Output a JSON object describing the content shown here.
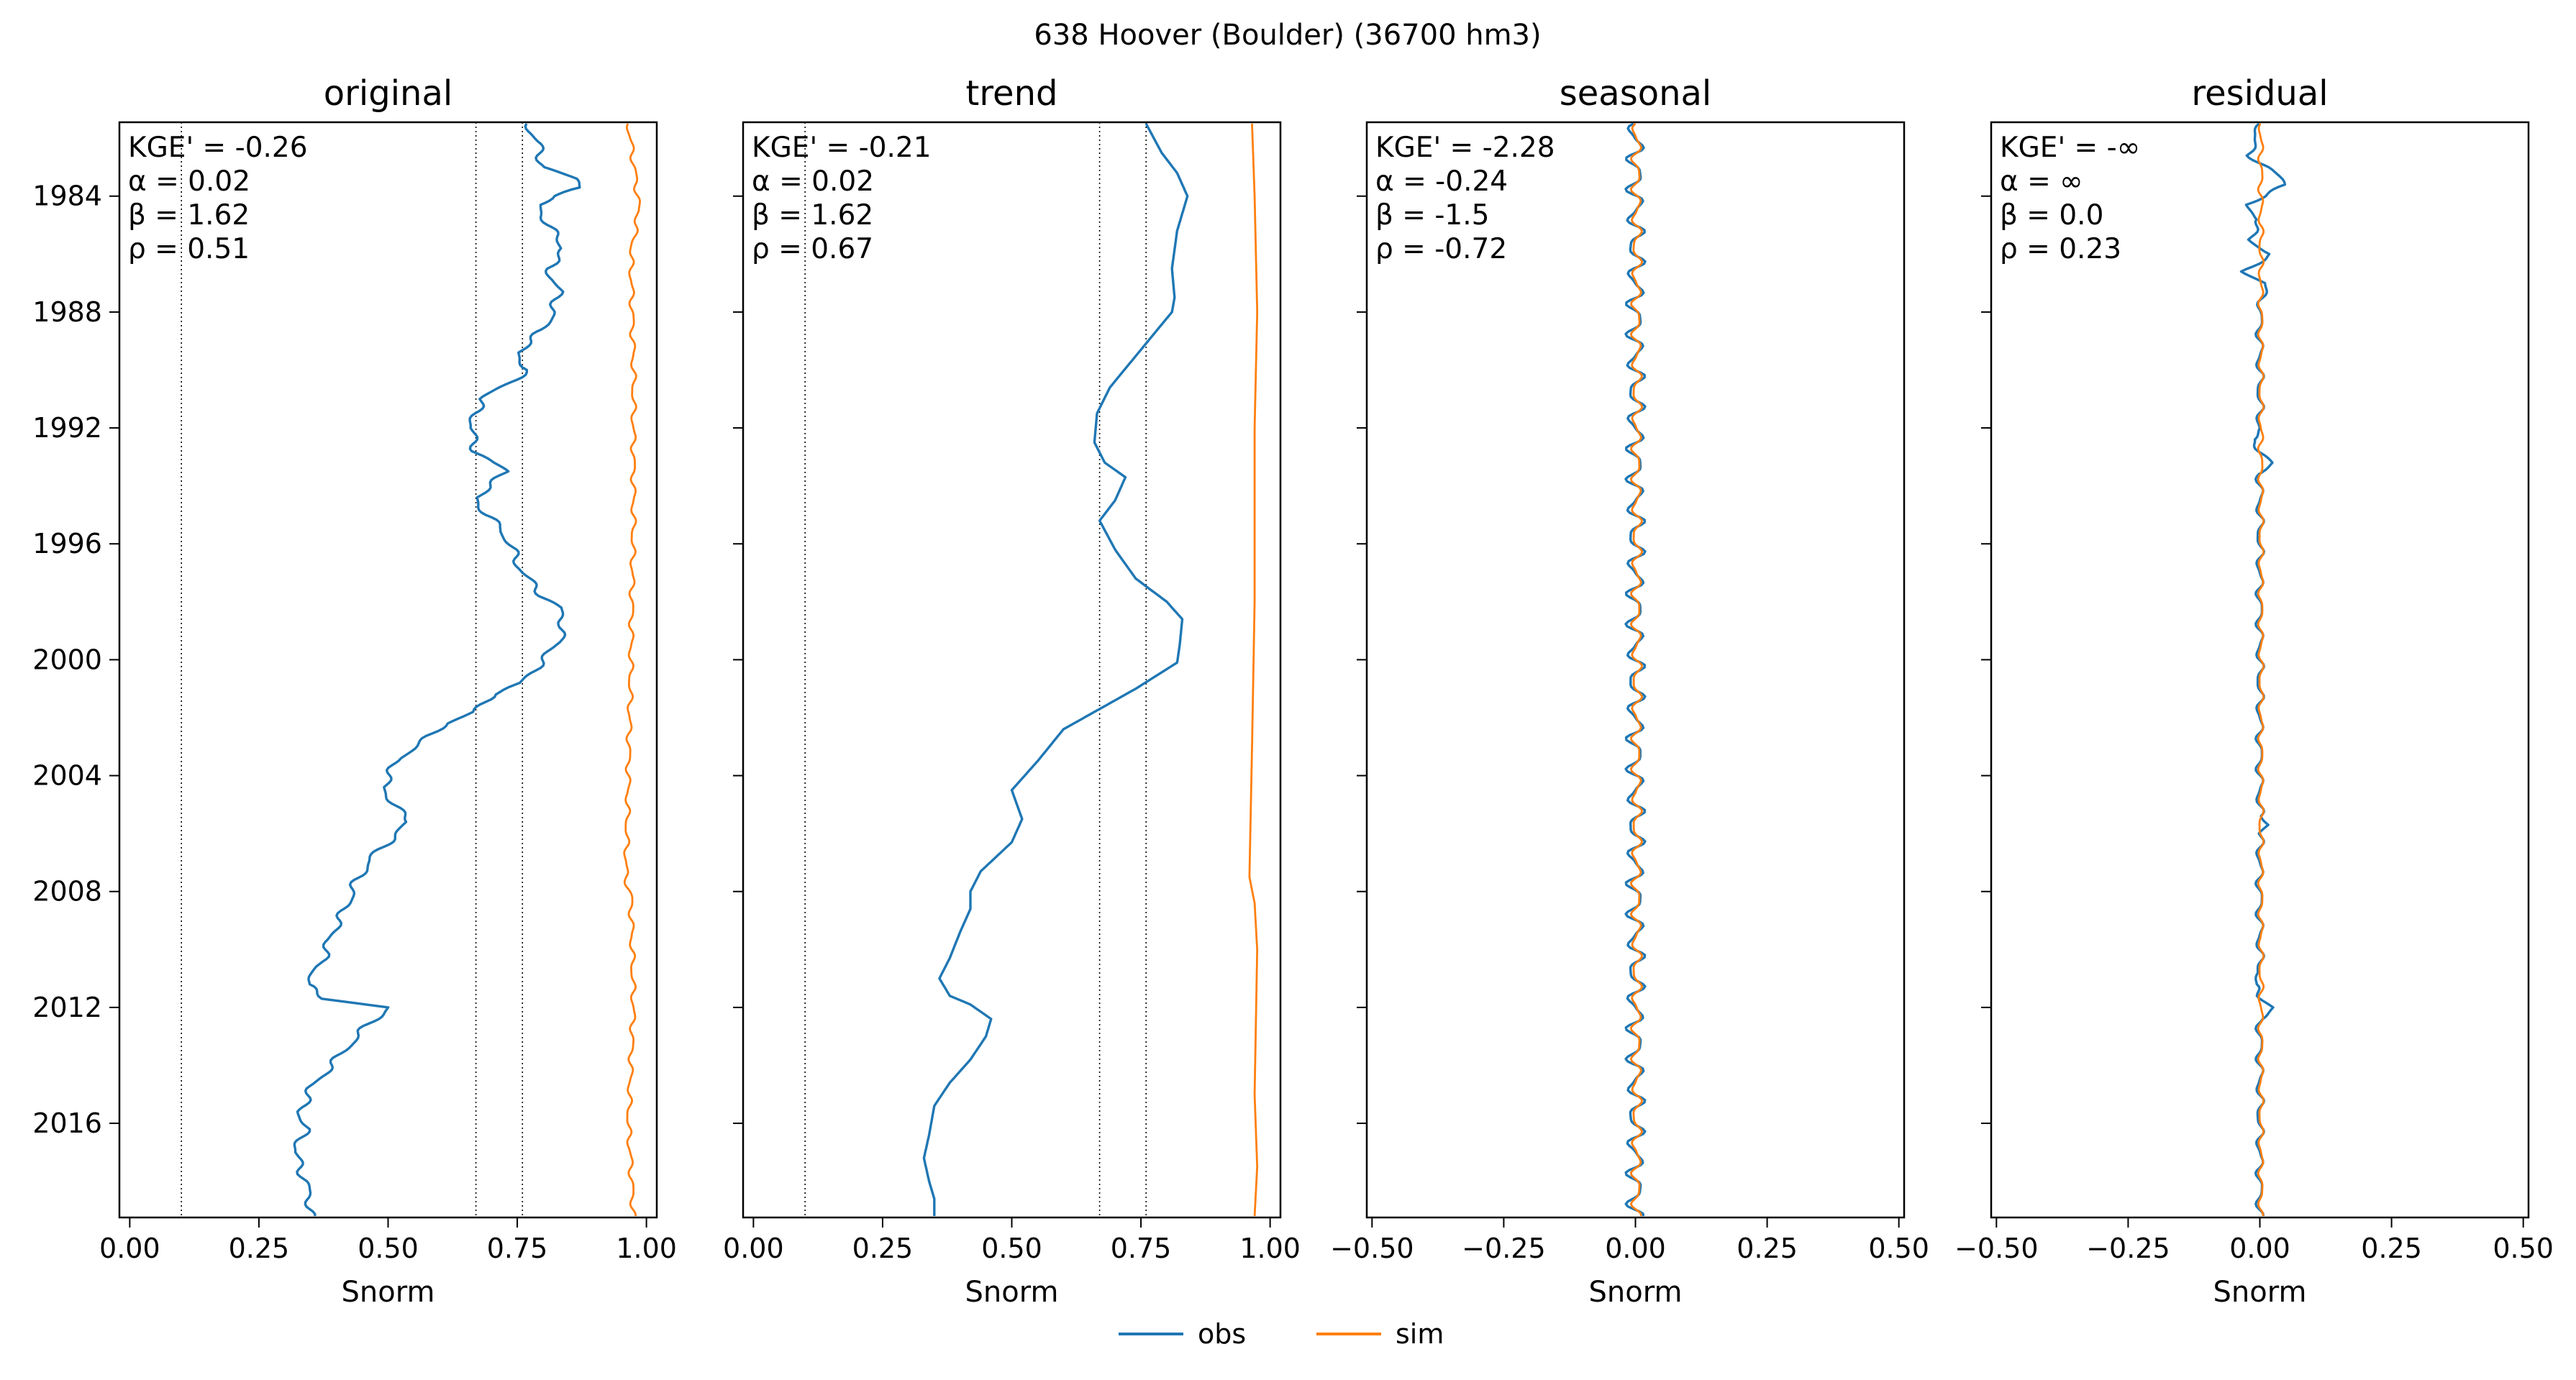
{
  "figure": {
    "title": "638  Hoover (Boulder) (36700 hm3)",
    "legend": [
      {
        "name": "obs",
        "color": "#1f77b4"
      },
      {
        "name": "sim",
        "color": "#ff7f0e"
      }
    ]
  },
  "chart_data": [
    {
      "type": "line",
      "title": "original",
      "xlabel": "Snorm",
      "xlim": [
        -0.02,
        1.02
      ],
      "ylim": [
        1981.45,
        2019.25
      ],
      "xticks": [
        "0.00",
        "0.25",
        "0.50",
        "0.75",
        "1.00"
      ],
      "xtick_values": [
        0,
        0.25,
        0.5,
        0.75,
        1.0
      ],
      "yticks": [
        "1984",
        "1988",
        "1992",
        "1996",
        "2000",
        "2004",
        "2008",
        "2012",
        "2016"
      ],
      "ytick_values": [
        1984,
        1988,
        1992,
        1996,
        2000,
        2004,
        2008,
        2012,
        2016
      ],
      "vlines": [
        0.1,
        0.67,
        0.76
      ],
      "stats": [
        "KGE' = -0.26",
        "α = 0.02",
        "β = 1.62",
        "ρ = 0.51"
      ],
      "series": [
        {
          "name": "obs",
          "color": "#1f77b4",
          "wiggle": 0.008,
          "points": [
            [
              0.77,
              1981.5
            ],
            [
              0.79,
              1982.2
            ],
            [
              0.8,
              1983.0
            ],
            [
              0.86,
              1983.4
            ],
            [
              0.88,
              1983.7
            ],
            [
              0.82,
              1984.0
            ],
            [
              0.79,
              1984.3
            ],
            [
              0.81,
              1985.0
            ],
            [
              0.84,
              1985.8
            ],
            [
              0.81,
              1986.5
            ],
            [
              0.83,
              1987.3
            ],
            [
              0.82,
              1988.0
            ],
            [
              0.8,
              1988.6
            ],
            [
              0.75,
              1989.4
            ],
            [
              0.77,
              1990.0
            ],
            [
              0.73,
              1990.5
            ],
            [
              0.68,
              1991.0
            ],
            [
              0.66,
              1992.0
            ],
            [
              0.67,
              1992.8
            ],
            [
              0.7,
              1993.2
            ],
            [
              0.73,
              1993.5
            ],
            [
              0.71,
              1993.8
            ],
            [
              0.67,
              1994.4
            ],
            [
              0.69,
              1995.0
            ],
            [
              0.72,
              1995.5
            ],
            [
              0.74,
              1996.2
            ],
            [
              0.76,
              1997.0
            ],
            [
              0.8,
              1997.8
            ],
            [
              0.83,
              1998.2
            ],
            [
              0.84,
              1998.8
            ],
            [
              0.83,
              1999.4
            ],
            [
              0.79,
              2000.2
            ],
            [
              0.76,
              2000.8
            ],
            [
              0.7,
              2001.2
            ],
            [
              0.67,
              2001.8
            ],
            [
              0.61,
              2002.2
            ],
            [
              0.57,
              2002.8
            ],
            [
              0.52,
              2003.4
            ],
            [
              0.49,
              2004.4
            ],
            [
              0.52,
              2005.2
            ],
            [
              0.54,
              2005.6
            ],
            [
              0.47,
              2006.8
            ],
            [
              0.44,
              2007.6
            ],
            [
              0.42,
              2008.5
            ],
            [
              0.39,
              2009.5
            ],
            [
              0.37,
              2010.5
            ],
            [
              0.34,
              2011.2
            ],
            [
              0.38,
              2011.7
            ],
            [
              0.46,
              2011.9
            ],
            [
              0.5,
              2012.0
            ],
            [
              0.45,
              2012.8
            ],
            [
              0.42,
              2013.4
            ],
            [
              0.39,
              2014.0
            ],
            [
              0.35,
              2014.8
            ],
            [
              0.33,
              2015.6
            ],
            [
              0.34,
              2016.2
            ],
            [
              0.32,
              2017.0
            ],
            [
              0.34,
              2018.0
            ],
            [
              0.35,
              2018.8
            ],
            [
              0.35,
              2019.2
            ]
          ]
        },
        {
          "name": "sim",
          "color": "#ff7f0e",
          "wiggle": 0.004,
          "points": [
            [
              0.965,
              1981.5
            ],
            [
              0.98,
              1983.5
            ],
            [
              0.985,
              1984.5
            ],
            [
              0.97,
              1986.0
            ],
            [
              0.975,
              1990.0
            ],
            [
              0.975,
              1995.0
            ],
            [
              0.97,
              2000.0
            ],
            [
              0.965,
              2004.0
            ],
            [
              0.96,
              2007.5
            ],
            [
              0.97,
              2008.2
            ],
            [
              0.975,
              2012.0
            ],
            [
              0.965,
              2016.0
            ],
            [
              0.97,
              2017.5
            ],
            [
              0.975,
              2019.2
            ]
          ]
        }
      ]
    },
    {
      "type": "line",
      "title": "trend",
      "xlabel": "Snorm",
      "xlim": [
        -0.02,
        1.02
      ],
      "ylim": [
        1981.45,
        2019.25
      ],
      "xticks": [
        "0.00",
        "0.25",
        "0.50",
        "0.75",
        "1.00"
      ],
      "xtick_values": [
        0,
        0.25,
        0.5,
        0.75,
        1.0
      ],
      "yticks": [],
      "ytick_values": [
        1984,
        1988,
        1992,
        1996,
        2000,
        2004,
        2008,
        2012,
        2016
      ],
      "vlines": [
        0.1,
        0.67,
        0.76
      ],
      "stats": [
        "KGE' = -0.21",
        "α = 0.02",
        "β = 1.62",
        "ρ = 0.67"
      ],
      "series": [
        {
          "name": "obs",
          "color": "#1f77b4",
          "wiggle": 0,
          "points": [
            [
              0.76,
              1981.5
            ],
            [
              0.79,
              1982.5
            ],
            [
              0.82,
              1983.2
            ],
            [
              0.84,
              1984.0
            ],
            [
              0.82,
              1985.2
            ],
            [
              0.81,
              1986.5
            ],
            [
              0.815,
              1987.5
            ],
            [
              0.81,
              1988.0
            ],
            [
              0.75,
              1989.3
            ],
            [
              0.69,
              1990.6
            ],
            [
              0.665,
              1991.5
            ],
            [
              0.66,
              1992.5
            ],
            [
              0.68,
              1993.2
            ],
            [
              0.72,
              1993.7
            ],
            [
              0.7,
              1994.5
            ],
            [
              0.67,
              1995.2
            ],
            [
              0.7,
              1996.2
            ],
            [
              0.74,
              1997.2
            ],
            [
              0.8,
              1998.0
            ],
            [
              0.83,
              1998.6
            ],
            [
              0.825,
              1999.5
            ],
            [
              0.82,
              2000.1
            ],
            [
              0.74,
              2001.0
            ],
            [
              0.66,
              2001.8
            ],
            [
              0.6,
              2002.4
            ],
            [
              0.55,
              2003.5
            ],
            [
              0.5,
              2004.5
            ],
            [
              0.52,
              2005.5
            ],
            [
              0.5,
              2006.3
            ],
            [
              0.44,
              2007.3
            ],
            [
              0.42,
              2008.0
            ],
            [
              0.42,
              2008.6
            ],
            [
              0.4,
              2009.4
            ],
            [
              0.38,
              2010.3
            ],
            [
              0.36,
              2011.0
            ],
            [
              0.38,
              2011.6
            ],
            [
              0.42,
              2011.9
            ],
            [
              0.46,
              2012.4
            ],
            [
              0.45,
              2013.0
            ],
            [
              0.42,
              2013.8
            ],
            [
              0.38,
              2014.6
            ],
            [
              0.35,
              2015.4
            ],
            [
              0.34,
              2016.4
            ],
            [
              0.33,
              2017.2
            ],
            [
              0.34,
              2018.0
            ],
            [
              0.35,
              2018.6
            ],
            [
              0.35,
              2019.2
            ]
          ]
        },
        {
          "name": "sim",
          "color": "#ff7f0e",
          "wiggle": 0,
          "points": [
            [
              0.965,
              1981.5
            ],
            [
              0.97,
              1984.0
            ],
            [
              0.975,
              1988.0
            ],
            [
              0.97,
              1992.0
            ],
            [
              0.97,
              1998.0
            ],
            [
              0.965,
              2003.0
            ],
            [
              0.96,
              2007.5
            ],
            [
              0.97,
              2008.4
            ],
            [
              0.975,
              2010.0
            ],
            [
              0.97,
              2015.0
            ],
            [
              0.975,
              2017.5
            ],
            [
              0.97,
              2019.2
            ]
          ]
        }
      ]
    },
    {
      "type": "line",
      "title": "seasonal",
      "xlabel": "Snorm",
      "xlim": [
        -0.51,
        0.51
      ],
      "ylim": [
        1981.45,
        2019.25
      ],
      "xticks": [
        "−0.50",
        "−0.25",
        "0.00",
        "0.25",
        "0.50"
      ],
      "xtick_values": [
        -0.5,
        -0.25,
        0,
        0.25,
        0.5
      ],
      "yticks": [],
      "ytick_values": [
        1984,
        1988,
        1992,
        1996,
        2000,
        2004,
        2008,
        2012,
        2016
      ],
      "vlines": [],
      "stats": [
        "KGE' = -2.28",
        "α = -0.24",
        "β = -1.5",
        "ρ = -0.72"
      ],
      "series": [
        {
          "name": "obs",
          "color": "#1f77b4",
          "wiggle": 0.014,
          "points": [
            [
              0,
              1981.5
            ],
            [
              0,
              2019.2
            ]
          ]
        },
        {
          "name": "sim",
          "color": "#ff7f0e",
          "wiggle": 0.008,
          "points": [
            [
              0.002,
              1981.5
            ],
            [
              0.002,
              2019.2
            ]
          ]
        }
      ]
    },
    {
      "type": "line",
      "title": "residual",
      "xlabel": "Snorm",
      "xlim": [
        -0.51,
        0.51
      ],
      "ylim": [
        1981.45,
        2019.25
      ],
      "xticks": [
        "−0.50",
        "−0.25",
        "0.00",
        "0.25",
        "0.50"
      ],
      "xtick_values": [
        -0.5,
        -0.25,
        0,
        0.25,
        0.5
      ],
      "yticks": [],
      "ytick_values": [
        1984,
        1988,
        1992,
        1996,
        2000,
        2004,
        2008,
        2012,
        2016
      ],
      "vlines": [],
      "stats": [
        "KGE' = -∞",
        "α = ∞",
        "β = 0.0",
        "ρ = 0.23"
      ],
      "series": [
        {
          "name": "obs",
          "color": "#1f77b4",
          "wiggle": 0.006,
          "points": [
            [
              0,
              1981.5
            ],
            [
              -0.02,
              1982.6
            ],
            [
              0.015,
              1983.0
            ],
            [
              0.05,
              1983.6
            ],
            [
              0.01,
              1984.0
            ],
            [
              -0.03,
              1984.3
            ],
            [
              0,
              1984.8
            ],
            [
              -0.02,
              1985.5
            ],
            [
              0.02,
              1986.0
            ],
            [
              -0.03,
              1986.6
            ],
            [
              0.01,
              1987.0
            ],
            [
              0,
              1988.0
            ],
            [
              0,
              1992.0
            ],
            [
              -0.015,
              1992.4
            ],
            [
              0.02,
              1993.2
            ],
            [
              0,
              1993.6
            ],
            [
              0,
              2005.4
            ],
            [
              0.02,
              2005.7
            ],
            [
              0,
              2006.0
            ],
            [
              0,
              2010.8
            ],
            [
              -0.012,
              2011.2
            ],
            [
              0,
              2011.6
            ],
            [
              0.025,
              2012.0
            ],
            [
              0,
              2012.4
            ],
            [
              0,
              2019.2
            ]
          ]
        },
        {
          "name": "sim",
          "color": "#ff7f0e",
          "wiggle": 0.004,
          "points": [
            [
              0.002,
              1981.5
            ],
            [
              0.002,
              2019.2
            ]
          ]
        }
      ]
    }
  ]
}
